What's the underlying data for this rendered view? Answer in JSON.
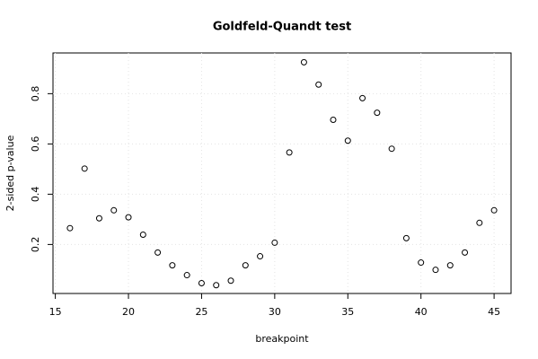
{
  "chart_data": {
    "type": "scatter",
    "title": "Goldfeld-Quandt test",
    "x_label": "breakpoint",
    "y_label": "2-sided p-value",
    "x": [
      16,
      17,
      18,
      19,
      20,
      21,
      22,
      23,
      24,
      25,
      26,
      27,
      28,
      29,
      30,
      31,
      32,
      33,
      34,
      35,
      36,
      37,
      38,
      39,
      40,
      41,
      42,
      43,
      44,
      45
    ],
    "values": [
      0.265,
      0.502,
      0.304,
      0.336,
      0.308,
      0.239,
      0.168,
      0.117,
      0.078,
      0.046,
      0.038,
      0.056,
      0.117,
      0.153,
      0.207,
      0.566,
      0.925,
      0.836,
      0.696,
      0.613,
      0.782,
      0.724,
      0.581,
      0.225,
      0.128,
      0.099,
      0.117,
      0.168,
      0.286,
      0.336
    ],
    "color": "#000000",
    "xlim": [
      14.84,
      46.16
    ],
    "xticks": [
      15,
      20,
      25,
      30,
      35,
      40,
      45
    ],
    "ylim": [
      0.005,
      0.962
    ],
    "yticks": [
      0.2,
      0.4,
      0.6,
      0.8
    ],
    "grid": true
  }
}
